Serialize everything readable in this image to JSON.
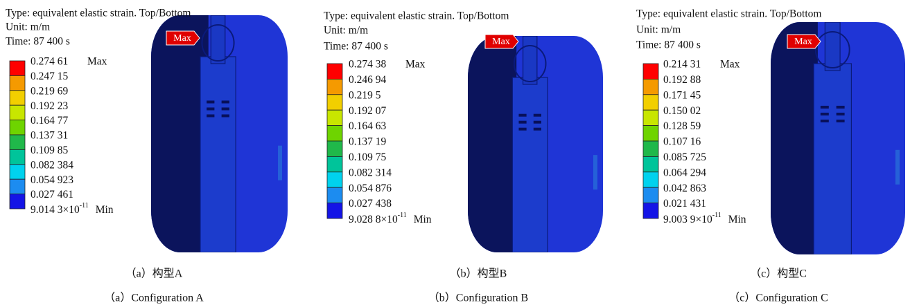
{
  "panels": [
    {
      "header": [
        "Type: equivalent elastic strain. Top/Bottom",
        "Unit: m/m",
        "Time: 87 400 s"
      ],
      "legend_values": [
        "0.274 61",
        "0.247 15",
        "0.219 69",
        "0.192 23",
        "0.164 77",
        "0.137 31",
        "0.109 85",
        "0.082 384",
        "0.054 923",
        "0.027 461"
      ],
      "max_tag": "Max",
      "min_value": {
        "mantissa": "9.014 3×10",
        "exponent": "-11"
      },
      "min_tag": "Min",
      "caption_cn": "（a）构型A",
      "caption_en": "（a）Configuration A"
    },
    {
      "header": [
        "Type: equivalent elastic strain. Top/Bottom",
        "Unit: m/m",
        "Time: 87 400 s"
      ],
      "legend_values": [
        "0.274 38",
        "0.246 94",
        "0.219 5",
        "0.192 07",
        "0.164 63",
        "0.137 19",
        "0.109 75",
        "0.082 314",
        "0.054 876",
        "0.027 438"
      ],
      "max_tag": "Max",
      "min_value": {
        "mantissa": "9.028 8×10",
        "exponent": "-11"
      },
      "min_tag": "Min",
      "caption_cn": "（b）构型B",
      "caption_en": "（b）Configuration B"
    },
    {
      "header": [
        "Type: equivalent elastic strain. Top/Bottom",
        "Unit: m/m",
        "Time: 87 400 s"
      ],
      "legend_values": [
        "0.214 31",
        "0.192 88",
        "0.171 45",
        "0.150 02",
        "0.128 59",
        "0.107 16",
        "0.085 725",
        "0.064 294",
        "0.042 863",
        "0.021 431"
      ],
      "max_tag": "Max",
      "min_value": {
        "mantissa": "9.003 9×10",
        "exponent": "-11"
      },
      "min_tag": "Min",
      "caption_cn": "（c）构型C",
      "caption_en": "（c）Configuration C"
    }
  ],
  "legend_colors": [
    "#ff0000",
    "#f59a00",
    "#f2cf00",
    "#c8e600",
    "#6ed400",
    "#20b84a",
    "#00c49a",
    "#00d2ee",
    "#1c8cf0",
    "#1414e6"
  ]
}
